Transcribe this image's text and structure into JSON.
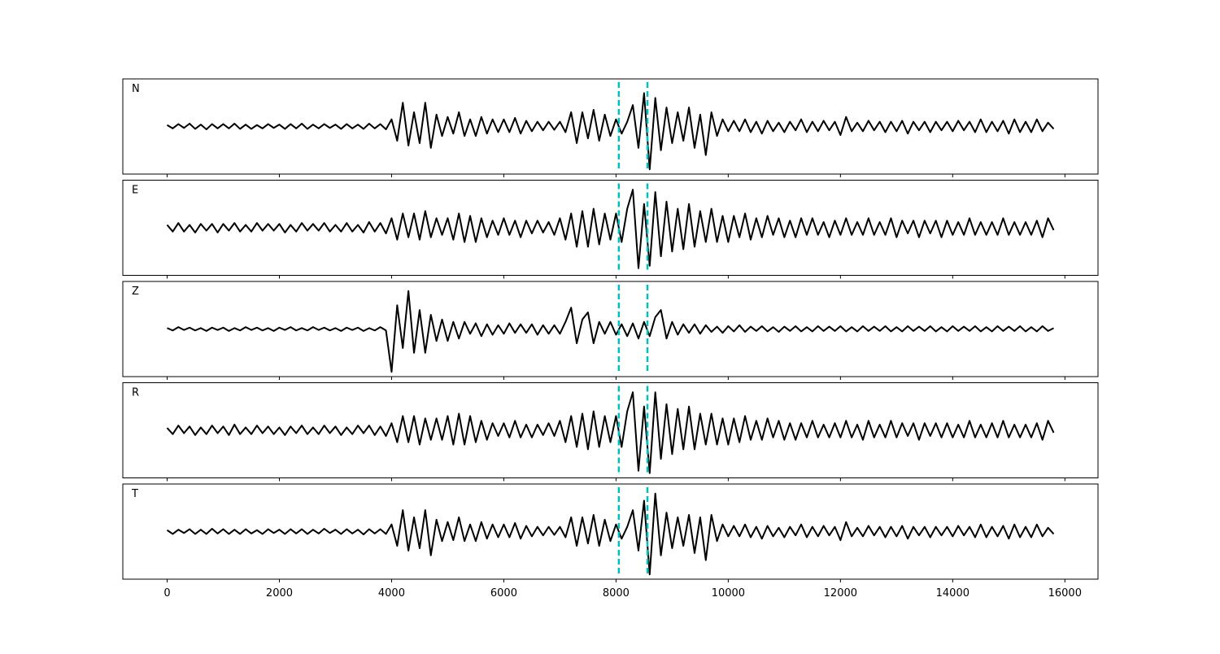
{
  "chart_data": {
    "type": "line",
    "layout": "stacked-panels",
    "x": [
      0,
      100,
      200,
      300,
      400,
      500,
      600,
      700,
      800,
      900,
      1000,
      1100,
      1200,
      1300,
      1400,
      1500,
      1600,
      1700,
      1800,
      1900,
      2000,
      2100,
      2200,
      2300,
      2400,
      2500,
      2600,
      2700,
      2800,
      2900,
      3000,
      3100,
      3200,
      3300,
      3400,
      3500,
      3600,
      3700,
      3800,
      3900,
      4000,
      4100,
      4200,
      4300,
      4400,
      4500,
      4600,
      4700,
      4800,
      4900,
      5000,
      5100,
      5200,
      5300,
      5400,
      5500,
      5600,
      5700,
      5800,
      5900,
      6000,
      6100,
      6200,
      6300,
      6400,
      6500,
      6600,
      6700,
      6800,
      6900,
      7000,
      7100,
      7200,
      7300,
      7400,
      7500,
      7600,
      7700,
      7800,
      7900,
      8000,
      8100,
      8200,
      8300,
      8400,
      8500,
      8600,
      8700,
      8800,
      8900,
      9000,
      9100,
      9200,
      9300,
      9400,
      9500,
      9600,
      9700,
      9800,
      9900,
      10000,
      10100,
      10200,
      10300,
      10400,
      10500,
      10600,
      10700,
      10800,
      10900,
      11000,
      11100,
      11200,
      11300,
      11400,
      11500,
      11600,
      11700,
      11800,
      11900,
      12000,
      12100,
      12200,
      12300,
      12400,
      12500,
      12600,
      12700,
      12800,
      12900,
      13000,
      13100,
      13200,
      13300,
      13400,
      13500,
      13600,
      13700,
      13800,
      13900,
      14000,
      14100,
      14200,
      14300,
      14400,
      14500,
      14600,
      14700,
      14800,
      14900,
      15000,
      15100,
      15200,
      15300,
      15400,
      15500,
      15600,
      15700,
      15800
    ],
    "xlim": [
      -790,
      16590
    ],
    "xticks": [
      0,
      2000,
      4000,
      6000,
      8000,
      10000,
      12000,
      14000,
      16000
    ],
    "ylim": [
      -1,
      1
    ],
    "vlines": [
      8050,
      8560
    ],
    "vline_color": "#00bfbf",
    "series": [
      {
        "name": "N",
        "color": "#000000",
        "values": [
          0.03,
          -0.04,
          0.05,
          -0.03,
          0.06,
          -0.05,
          0.04,
          -0.06,
          0.05,
          -0.04,
          0.05,
          -0.04,
          0.06,
          -0.05,
          0.04,
          -0.05,
          0.03,
          -0.04,
          0.05,
          -0.03,
          0.04,
          -0.05,
          0.05,
          -0.04,
          0.06,
          -0.05,
          0.04,
          -0.04,
          0.05,
          -0.03,
          0.04,
          -0.05,
          0.05,
          -0.04,
          0.04,
          -0.05,
          0.06,
          -0.04,
          0.05,
          -0.06,
          0.15,
          -0.3,
          0.5,
          -0.4,
          0.3,
          -0.35,
          0.5,
          -0.45,
          0.25,
          -0.2,
          0.2,
          -0.15,
          0.3,
          -0.2,
          0.15,
          -0.2,
          0.2,
          -0.15,
          0.15,
          -0.12,
          0.15,
          -0.12,
          0.18,
          -0.15,
          0.12,
          -0.1,
          0.1,
          -0.08,
          0.1,
          -0.07,
          0.1,
          -0.12,
          0.3,
          -0.35,
          0.3,
          -0.25,
          0.35,
          -0.3,
          0.25,
          -0.2,
          0.15,
          -0.15,
          0.1,
          0.45,
          -0.45,
          0.7,
          -0.9,
          0.6,
          -0.5,
          0.4,
          -0.35,
          0.3,
          -0.3,
          0.4,
          -0.45,
          0.25,
          -0.6,
          0.3,
          -0.2,
          0.15,
          -0.1,
          0.12,
          -0.1,
          0.15,
          -0.12,
          0.1,
          -0.15,
          0.12,
          -0.1,
          0.08,
          -0.12,
          0.1,
          -0.08,
          0.15,
          -0.12,
          0.1,
          -0.1,
          0.12,
          -0.08,
          0.1,
          -0.18,
          0.2,
          -0.1,
          0.08,
          -0.1,
          0.12,
          -0.08,
          0.1,
          -0.12,
          0.1,
          -0.1,
          0.12,
          -0.15,
          0.1,
          -0.08,
          0.1,
          -0.12,
          0.1,
          -0.08,
          0.1,
          -0.1,
          0.12,
          -0.08,
          0.1,
          -0.12,
          0.15,
          -0.12,
          0.1,
          -0.1,
          0.12,
          -0.15,
          0.15,
          -0.12,
          0.1,
          -0.12,
          0.15,
          -0.1,
          0.08,
          -0.05
        ]
      },
      {
        "name": "E",
        "color": "#000000",
        "values": [
          0.06,
          -0.08,
          0.1,
          -0.08,
          0.06,
          -0.1,
          0.08,
          -0.06,
          0.08,
          -0.1,
          0.08,
          -0.06,
          0.1,
          -0.08,
          0.06,
          -0.08,
          0.1,
          -0.06,
          0.08,
          -0.06,
          0.08,
          -0.1,
          0.06,
          -0.08,
          0.1,
          -0.06,
          0.08,
          -0.06,
          0.1,
          -0.08,
          0.06,
          -0.08,
          0.1,
          -0.08,
          0.06,
          -0.1,
          0.12,
          -0.08,
          0.1,
          -0.12,
          0.2,
          -0.25,
          0.3,
          -0.2,
          0.3,
          -0.25,
          0.35,
          -0.2,
          0.2,
          -0.15,
          0.2,
          -0.25,
          0.3,
          -0.3,
          0.25,
          -0.3,
          0.2,
          -0.2,
          0.15,
          -0.15,
          0.2,
          -0.15,
          0.15,
          -0.2,
          0.15,
          -0.12,
          0.15,
          -0.1,
          0.12,
          -0.15,
          0.2,
          -0.25,
          0.3,
          -0.4,
          0.35,
          -0.4,
          0.4,
          -0.35,
          0.3,
          -0.25,
          0.3,
          -0.3,
          0.4,
          0.8,
          -0.85,
          0.5,
          -0.8,
          0.75,
          -0.6,
          0.55,
          -0.5,
          0.4,
          -0.45,
          0.5,
          -0.4,
          0.35,
          -0.3,
          0.4,
          -0.3,
          0.25,
          -0.3,
          0.25,
          -0.2,
          0.3,
          -0.25,
          0.2,
          -0.2,
          0.25,
          -0.15,
          0.2,
          -0.2,
          0.15,
          -0.2,
          0.2,
          -0.15,
          0.2,
          -0.15,
          0.12,
          -0.2,
          0.15,
          -0.15,
          0.2,
          -0.15,
          0.12,
          -0.15,
          0.2,
          -0.15,
          0.12,
          -0.15,
          0.2,
          -0.2,
          0.15,
          -0.12,
          0.15,
          -0.2,
          0.15,
          -0.12,
          0.15,
          -0.2,
          0.15,
          -0.15,
          0.12,
          -0.15,
          0.2,
          -0.15,
          0.12,
          -0.15,
          0.12,
          -0.15,
          0.2,
          -0.15,
          0.12,
          -0.15,
          0.12,
          -0.15,
          0.15,
          -0.2,
          0.2,
          -0.05
        ]
      },
      {
        "name": "Z",
        "color": "#000000",
        "values": [
          0.02,
          -0.03,
          0.04,
          -0.02,
          0.03,
          -0.03,
          0.02,
          -0.04,
          0.03,
          -0.02,
          0.03,
          -0.04,
          0.02,
          -0.03,
          0.04,
          -0.02,
          0.03,
          -0.03,
          0.02,
          -0.04,
          0.03,
          -0.02,
          0.04,
          -0.03,
          0.02,
          -0.03,
          0.04,
          -0.02,
          0.03,
          -0.03,
          0.02,
          -0.04,
          0.03,
          -0.02,
          0.03,
          -0.04,
          0.02,
          -0.03,
          0.04,
          -0.03,
          -0.9,
          0.5,
          -0.4,
          0.8,
          -0.5,
          0.4,
          -0.5,
          0.3,
          -0.25,
          0.2,
          -0.25,
          0.15,
          -0.2,
          0.15,
          -0.1,
          0.12,
          -0.15,
          0.1,
          -0.12,
          0.08,
          -0.1,
          0.12,
          -0.08,
          0.1,
          -0.08,
          0.1,
          -0.12,
          0.08,
          -0.1,
          0.08,
          -0.1,
          0.15,
          0.45,
          -0.3,
          0.2,
          0.35,
          -0.3,
          0.15,
          -0.1,
          0.15,
          -0.12,
          0.1,
          -0.15,
          0.12,
          -0.2,
          0.15,
          -0.15,
          0.25,
          0.4,
          -0.2,
          0.15,
          -0.12,
          0.1,
          -0.08,
          0.1,
          -0.1,
          0.08,
          -0.06,
          0.05,
          -0.08,
          0.06,
          -0.05,
          0.08,
          -0.06,
          0.05,
          -0.04,
          0.06,
          -0.05,
          0.04,
          -0.06,
          0.05,
          -0.04,
          0.06,
          -0.05,
          0.04,
          -0.05,
          0.06,
          -0.04,
          0.05,
          -0.04,
          0.06,
          -0.05,
          0.04,
          -0.05,
          0.06,
          -0.04,
          0.05,
          -0.04,
          0.06,
          -0.05,
          0.04,
          -0.05,
          0.06,
          -0.04,
          0.05,
          -0.04,
          0.06,
          -0.05,
          0.04,
          -0.05,
          0.06,
          -0.04,
          0.05,
          -0.04,
          0.06,
          -0.05,
          0.04,
          -0.05,
          0.06,
          -0.04,
          0.05,
          -0.04,
          0.06,
          -0.05,
          0.04,
          -0.05,
          0.06,
          -0.04,
          0.02
        ]
      },
      {
        "name": "R",
        "color": "#000000",
        "values": [
          0.05,
          -0.08,
          0.1,
          -0.06,
          0.08,
          -0.1,
          0.06,
          -0.08,
          0.1,
          -0.06,
          0.08,
          -0.1,
          0.12,
          -0.08,
          0.06,
          -0.08,
          0.1,
          -0.06,
          0.08,
          -0.08,
          0.06,
          -0.1,
          0.08,
          -0.06,
          0.1,
          -0.08,
          0.06,
          -0.08,
          0.1,
          -0.06,
          0.08,
          -0.1,
          0.06,
          -0.08,
          0.1,
          -0.06,
          0.1,
          -0.1,
          0.08,
          -0.12,
          0.15,
          -0.25,
          0.3,
          -0.25,
          0.3,
          -0.3,
          0.25,
          -0.2,
          0.25,
          -0.2,
          0.3,
          -0.3,
          0.35,
          -0.3,
          0.3,
          -0.25,
          0.2,
          -0.2,
          0.15,
          -0.12,
          0.15,
          -0.15,
          0.2,
          -0.15,
          0.12,
          -0.15,
          0.12,
          -0.1,
          0.15,
          -0.12,
          0.2,
          -0.25,
          0.3,
          -0.35,
          0.35,
          -0.4,
          0.4,
          -0.35,
          0.3,
          -0.25,
          0.3,
          -0.35,
          0.4,
          0.8,
          -0.85,
          0.5,
          -0.9,
          0.8,
          -0.6,
          0.55,
          -0.5,
          0.45,
          -0.4,
          0.5,
          -0.4,
          0.35,
          -0.3,
          0.35,
          -0.3,
          0.25,
          -0.3,
          0.25,
          -0.25,
          0.3,
          -0.2,
          0.2,
          -0.2,
          0.25,
          -0.15,
          0.2,
          -0.2,
          0.15,
          -0.2,
          0.15,
          -0.15,
          0.2,
          -0.15,
          0.12,
          -0.15,
          0.15,
          -0.15,
          0.2,
          -0.15,
          0.12,
          -0.2,
          0.2,
          -0.15,
          0.12,
          -0.15,
          0.2,
          -0.15,
          0.15,
          -0.12,
          0.15,
          -0.2,
          0.15,
          -0.12,
          0.15,
          -0.15,
          0.15,
          -0.15,
          0.12,
          -0.15,
          0.2,
          -0.15,
          0.12,
          -0.15,
          0.15,
          -0.15,
          0.2,
          -0.15,
          0.12,
          -0.15,
          0.12,
          -0.15,
          0.15,
          -0.2,
          0.2,
          -0.05
        ]
      },
      {
        "name": "T",
        "color": "#000000",
        "values": [
          0.03,
          -0.05,
          0.04,
          -0.03,
          0.05,
          -0.05,
          0.04,
          -0.05,
          0.06,
          -0.04,
          0.05,
          -0.05,
          0.04,
          -0.05,
          0.05,
          -0.04,
          0.03,
          -0.05,
          0.05,
          -0.03,
          0.04,
          -0.05,
          0.05,
          -0.04,
          0.05,
          -0.05,
          0.04,
          -0.04,
          0.06,
          -0.03,
          0.04,
          -0.05,
          0.05,
          -0.04,
          0.04,
          -0.06,
          0.05,
          -0.04,
          0.05,
          -0.05,
          0.15,
          -0.3,
          0.45,
          -0.4,
          0.3,
          -0.35,
          0.45,
          -0.5,
          0.25,
          -0.2,
          0.2,
          -0.18,
          0.3,
          -0.2,
          0.15,
          -0.2,
          0.2,
          -0.15,
          0.15,
          -0.12,
          0.15,
          -0.12,
          0.18,
          -0.15,
          0.12,
          -0.1,
          0.1,
          -0.08,
          0.1,
          -0.07,
          0.1,
          -0.12,
          0.3,
          -0.3,
          0.3,
          -0.25,
          0.35,
          -0.3,
          0.25,
          -0.2,
          0.15,
          -0.15,
          0.1,
          0.45,
          -0.4,
          0.65,
          -0.9,
          0.8,
          -0.5,
          0.4,
          -0.35,
          0.3,
          -0.3,
          0.35,
          -0.45,
          0.3,
          -0.6,
          0.35,
          -0.2,
          0.15,
          -0.1,
          0.12,
          -0.1,
          0.15,
          -0.12,
          0.1,
          -0.15,
          0.12,
          -0.1,
          0.08,
          -0.12,
          0.1,
          -0.08,
          0.15,
          -0.12,
          0.1,
          -0.1,
          0.12,
          -0.08,
          0.1,
          -0.18,
          0.2,
          -0.1,
          0.08,
          -0.1,
          0.12,
          -0.08,
          0.1,
          -0.12,
          0.1,
          -0.1,
          0.12,
          -0.15,
          0.1,
          -0.08,
          0.1,
          -0.12,
          0.1,
          -0.08,
          0.1,
          -0.1,
          0.12,
          -0.08,
          0.1,
          -0.12,
          0.15,
          -0.12,
          0.1,
          -0.1,
          0.12,
          -0.15,
          0.15,
          -0.12,
          0.1,
          -0.12,
          0.15,
          -0.1,
          0.08,
          -0.05
        ]
      }
    ]
  }
}
